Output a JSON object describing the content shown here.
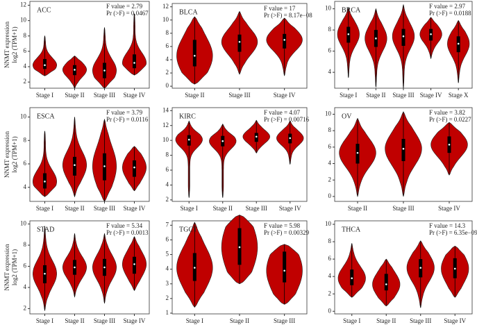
{
  "chart_data": [
    {
      "type": "violin",
      "title": "ACC",
      "annotations": [
        "F value = 2.79",
        "Pr (>F) = 0.0467"
      ],
      "y_label": [
        "NNMT expression",
        "log2 (TPM+1)"
      ],
      "color": "#c00000",
      "categories": [
        "Stage I",
        "Stage II",
        "Stage III",
        "Stage IV"
      ],
      "values": [
        [
          2.8,
          3.7,
          4.2,
          5.0,
          8.0
        ],
        [
          1.2,
          2.9,
          3.6,
          4.2,
          5.4
        ],
        [
          1.2,
          2.5,
          3.5,
          4.5,
          9.1
        ],
        [
          2.9,
          3.8,
          4.5,
          5.6,
          10.9
        ]
      ],
      "ylim": [
        1.2,
        12.5
      ],
      "yticks": [
        2,
        4,
        6,
        8,
        10,
        12
      ]
    },
    {
      "type": "violin",
      "title": "BLCA",
      "annotations": [
        "F value = 17",
        "Pr (>F) = 8.17e−08"
      ],
      "color": "#c00000",
      "categories": [
        "Stage II",
        "Stage III",
        "Stage IV"
      ],
      "values": [
        [
          0.3,
          3.0,
          4.6,
          7.0,
          10.5
        ],
        [
          1.8,
          5.2,
          6.7,
          7.8,
          11.3
        ],
        [
          1.6,
          5.7,
          7.0,
          7.9,
          10.3
        ]
      ],
      "ylim": [
        -0.3,
        12.5
      ],
      "yticks": [
        0,
        2,
        4,
        6,
        8,
        10,
        12
      ]
    },
    {
      "type": "violin",
      "title": "BRCA",
      "annotations": [
        "F value = 2.97",
        "Pr (>F) = 0.0188"
      ],
      "color": "#c00000",
      "categories": [
        "Stage I",
        "Stage II",
        "Stage III",
        "Stage IV",
        "Stage X"
      ],
      "values": [
        [
          3.5,
          6.8,
          7.6,
          8.3,
          10.1
        ],
        [
          2.6,
          6.4,
          7.2,
          8.0,
          10.0
        ],
        [
          2.5,
          6.5,
          7.4,
          8.1,
          10.4
        ],
        [
          5.3,
          7.0,
          7.6,
          8.1,
          9.2
        ],
        [
          3.0,
          5.9,
          6.7,
          7.4,
          8.9
        ]
      ],
      "ylim": [
        2.5,
        10.7
      ],
      "yticks": [
        4,
        6,
        8,
        10
      ]
    },
    {
      "type": "violin",
      "title": "ESCA",
      "annotations": [
        "F value = 3.79",
        "Pr (>F) = 0.0116"
      ],
      "y_label": [
        "NNMT expression",
        "log2 (TPM+1)"
      ],
      "color": "#c00000",
      "categories": [
        "Stage I",
        "Stage II",
        "Stage III",
        "Stage IV"
      ],
      "values": [
        [
          3.2,
          3.9,
          4.5,
          5.2,
          8.8
        ],
        [
          3.2,
          5.0,
          5.9,
          6.6,
          10.0
        ],
        [
          2.8,
          4.6,
          5.8,
          6.9,
          9.8
        ],
        [
          3.7,
          4.9,
          5.7,
          6.3,
          7.5
        ]
      ],
      "ylim": [
        2.8,
        10.8
      ],
      "yticks": [
        4,
        6,
        8,
        10
      ]
    },
    {
      "type": "violin",
      "title": "KIRC",
      "annotations": [
        "F value = 4.07",
        "Pr (>F) = 0.00716"
      ],
      "color": "#c00000",
      "categories": [
        "Stage I",
        "Stage II",
        "Stage III",
        "Stage IV"
      ],
      "values": [
        [
          2.3,
          9.3,
          10.1,
          10.7,
          12.6
        ],
        [
          2.3,
          9.2,
          9.9,
          10.6,
          12.2
        ],
        [
          8.3,
          9.8,
          10.5,
          11.0,
          12.7
        ],
        [
          6.8,
          9.6,
          10.3,
          10.9,
          12.6
        ]
      ],
      "ylim": [
        1.8,
        14.4
      ],
      "yticks": [
        2,
        4,
        6,
        8,
        10,
        12,
        14
      ]
    },
    {
      "type": "violin",
      "title": "OV",
      "annotations": [
        "F value = 3.82",
        "Pr (>F) = 0.0227"
      ],
      "color": "#c00000",
      "categories": [
        "Stage II",
        "Stage III",
        "Stage IV"
      ],
      "values": [
        [
          0,
          4.0,
          5.3,
          6.4,
          9.5
        ],
        [
          0,
          4.3,
          5.8,
          7.0,
          10.3
        ],
        [
          2.6,
          5.3,
          6.3,
          7.3,
          9.0
        ]
      ],
      "ylim": [
        -0.6,
        10.8
      ],
      "yticks": [
        0,
        2,
        4,
        6,
        8,
        10
      ]
    },
    {
      "type": "violin",
      "title": "STAD",
      "annotations": [
        "F value = 5.34",
        "Pr (>F) = 0.0013"
      ],
      "y_label": [
        "NNMT expression",
        "log2 (TPM+1)"
      ],
      "color": "#c00000",
      "categories": [
        "Stage I",
        "Stage II",
        "Stage III",
        "Stage IV"
      ],
      "values": [
        [
          1.8,
          4.4,
          5.3,
          6.1,
          9.8
        ],
        [
          3.1,
          5.2,
          5.9,
          6.6,
          9.1
        ],
        [
          2.5,
          5.1,
          5.9,
          6.7,
          9.1
        ],
        [
          3.7,
          5.3,
          6.2,
          6.9,
          8.8
        ]
      ],
      "ylim": [
        1.5,
        10.3
      ],
      "yticks": [
        2,
        4,
        6,
        8,
        10
      ]
    },
    {
      "type": "violin",
      "title": "TGCT",
      "annotations": [
        "F value = 5.98",
        "Pr (>F) = 0.00329"
      ],
      "color": "#c00000",
      "categories": [
        "Stage I",
        "Stage II",
        "Stage III"
      ],
      "values": [
        [
          1.4,
          3.2,
          4.1,
          5.1,
          7.2
        ],
        [
          3.0,
          4.3,
          5.5,
          6.8,
          7.7
        ],
        [
          1.6,
          3.1,
          3.9,
          5.2,
          5.7
        ]
      ],
      "ylim": [
        0.95,
        7.3
      ],
      "yticks": [
        1,
        2,
        3,
        4,
        5,
        6,
        7
      ]
    },
    {
      "type": "violin",
      "title": "THCA",
      "annotations": [
        "F value = 14.3",
        "Pr (>F) = 6.35e−09"
      ],
      "color": "#c00000",
      "categories": [
        "Stage I",
        "Stage II",
        "Stage III",
        "Stage IV"
      ],
      "values": [
        [
          1.6,
          3.0,
          3.8,
          4.8,
          7.8
        ],
        [
          0.6,
          2.4,
          3.1,
          4.3,
          6.0
        ],
        [
          0.4,
          3.9,
          5.0,
          6.0,
          8.1
        ],
        [
          1.6,
          3.8,
          4.9,
          6.1,
          7.5
        ]
      ],
      "ylim": [
        -0.3,
        10.4
      ],
      "yticks": [
        0,
        2,
        4,
        6,
        8,
        10
      ]
    }
  ]
}
